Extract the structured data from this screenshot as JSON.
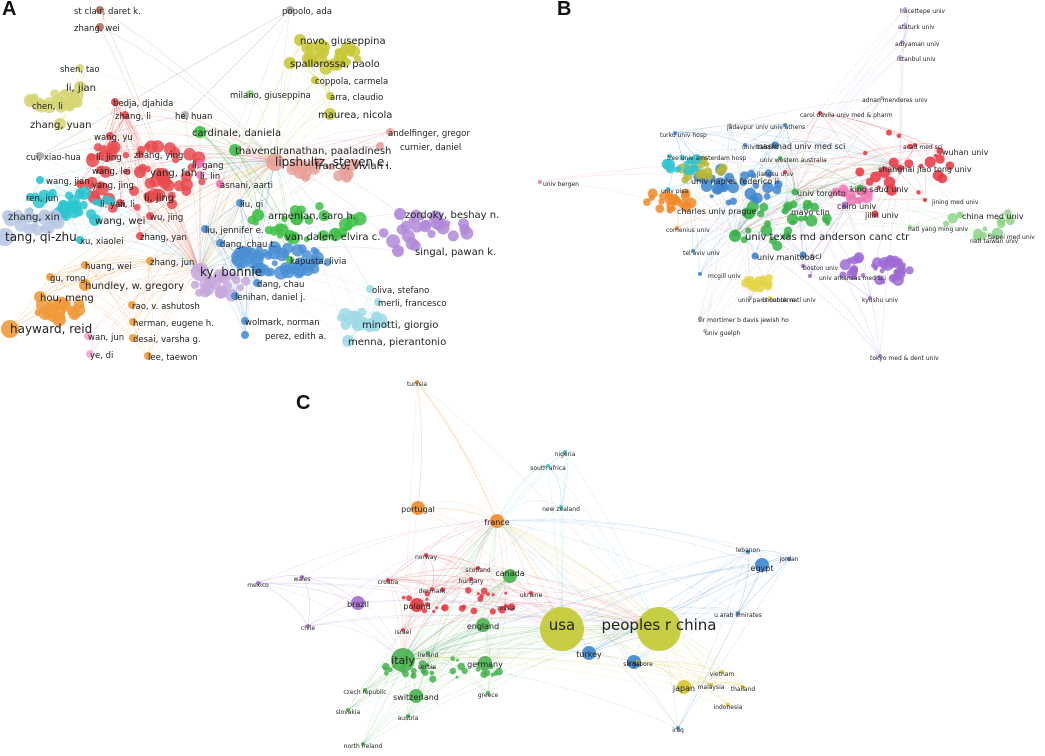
{
  "panels": {
    "a": {
      "label": "A",
      "colors": {
        "brown": "#b46f5f",
        "olive": "#c9c93a",
        "khaki": "#d6d676",
        "red": "#e94a4e",
        "pink": "#f06fb0",
        "grey": "#aaaaaa",
        "lgreen": "#8dd07a",
        "salmon": "#e8a29a",
        "green": "#3fbf46",
        "purple": "#b088d8",
        "blue": "#4a8fd4",
        "cyan": "#2bc5cf",
        "lblue": "#b8c9e4",
        "lcyan": "#9fdbe6",
        "orange": "#f09a3a",
        "lilac": "#c7a8dd",
        "lpink": "#f4a6cf"
      },
      "nodes": [
        {
          "label": "st clair, daret k.",
          "cluster": "brown",
          "weight": 1
        },
        {
          "label": "zhang, wei",
          "cluster": "brown",
          "weight": 1
        },
        {
          "label": "popolo, ada",
          "cluster": "grey",
          "weight": 1
        },
        {
          "label": "novo, giuseppina",
          "cluster": "olive",
          "weight": 2
        },
        {
          "label": "spallarossa, paolo",
          "cluster": "olive",
          "weight": 2
        },
        {
          "label": "coppola, carmela",
          "cluster": "olive",
          "weight": 1
        },
        {
          "label": "milano, giuseppina",
          "cluster": "lgreen",
          "weight": 1
        },
        {
          "label": "arra, claudio",
          "cluster": "olive",
          "weight": 1
        },
        {
          "label": "maurea, nicola",
          "cluster": "olive",
          "weight": 2
        },
        {
          "label": "shen, tao",
          "cluster": "khaki",
          "weight": 1
        },
        {
          "label": "li, jian",
          "cluster": "khaki",
          "weight": 2
        },
        {
          "label": "chen, li",
          "cluster": "khaki",
          "weight": 1
        },
        {
          "label": "zhang, yuan",
          "cluster": "khaki",
          "weight": 2
        },
        {
          "label": "bedja, djahida",
          "cluster": "red",
          "weight": 1
        },
        {
          "label": "he, huan",
          "cluster": "grey",
          "weight": 1
        },
        {
          "label": "zhang, li",
          "cluster": "red",
          "weight": 1
        },
        {
          "label": "wang, yu",
          "cluster": "red",
          "weight": 1
        },
        {
          "label": "cardinale, daniela",
          "cluster": "green",
          "weight": 2
        },
        {
          "label": "andelfinger, gregor",
          "cluster": "salmon",
          "weight": 1
        },
        {
          "label": "curnier, daniel",
          "cluster": "salmon",
          "weight": 1
        },
        {
          "label": "thavendiranathan, paaladinesh",
          "cluster": "green",
          "weight": 2
        },
        {
          "label": "cui, xiao-hua",
          "cluster": "grey",
          "weight": 1
        },
        {
          "label": "li, jing",
          "cluster": "red",
          "weight": 1
        },
        {
          "label": "zhang, ying",
          "cluster": "red",
          "weight": 1
        },
        {
          "label": "wang, lei",
          "cluster": "red",
          "weight": 1
        },
        {
          "label": "yang, fan",
          "cluster": "red",
          "weight": 2
        },
        {
          "label": "li, gang",
          "cluster": "pink",
          "weight": 1
        },
        {
          "label": "franco, vivian i.",
          "cluster": "salmon",
          "weight": 2
        },
        {
          "label": "wang, jian",
          "cluster": "cyan",
          "weight": 1
        },
        {
          "label": "yang, jing",
          "cluster": "red",
          "weight": 1
        },
        {
          "label": "asnani, aarti",
          "cluster": "pink",
          "weight": 1
        },
        {
          "label": "lipshultz, steven e.",
          "cluster": "salmon",
          "weight": 3
        },
        {
          "label": "ren, jun",
          "cluster": "cyan",
          "weight": 1
        },
        {
          "label": "li, jing",
          "cluster": "red",
          "weight": 2
        },
        {
          "label": "li, lin",
          "cluster": "pink",
          "weight": 1
        },
        {
          "label": "zhang, xin",
          "cluster": "lblue",
          "weight": 2
        },
        {
          "label": "li, yan",
          "cluster": "cyan",
          "weight": 1
        },
        {
          "label": "li, li",
          "cluster": "red",
          "weight": 1
        },
        {
          "label": "wu, jing",
          "cluster": "red",
          "weight": 1
        },
        {
          "label": "liu, qi",
          "cluster": "blue",
          "weight": 1
        },
        {
          "label": "zordoky, beshay n.",
          "cluster": "purple",
          "weight": 2
        },
        {
          "label": "tang, qi-zhu",
          "cluster": "lblue",
          "weight": 3
        },
        {
          "label": "wang, wei",
          "cluster": "cyan",
          "weight": 2
        },
        {
          "label": "armenian, saro h.",
          "cluster": "green",
          "weight": 2
        },
        {
          "label": "xu, xiaolei",
          "cluster": "cyan",
          "weight": 1
        },
        {
          "label": "zhang, yan",
          "cluster": "red",
          "weight": 1
        },
        {
          "label": "liu, jennifer e.",
          "cluster": "blue",
          "weight": 1
        },
        {
          "label": "van dalen, elvira c.",
          "cluster": "green",
          "weight": 2
        },
        {
          "label": "dang, chau t.",
          "cluster": "blue",
          "weight": 1
        },
        {
          "label": "singal, pawan k.",
          "cluster": "purple",
          "weight": 2
        },
        {
          "label": "zhang, jun",
          "cluster": "orange",
          "weight": 1
        },
        {
          "label": "kapusta, livia",
          "cluster": "green",
          "weight": 1
        },
        {
          "label": "huang, wei",
          "cluster": "orange",
          "weight": 1
        },
        {
          "label": "ky, bonnie",
          "cluster": "lilac",
          "weight": 3
        },
        {
          "label": "gu, rong",
          "cluster": "orange",
          "weight": 1
        },
        {
          "label": "hundley, w. gregory",
          "cluster": "orange",
          "weight": 2
        },
        {
          "label": "hou, meng",
          "cluster": "orange",
          "weight": 2
        },
        {
          "label": "dang, chau",
          "cluster": "blue",
          "weight": 1
        },
        {
          "label": "lenihan, daniel j.",
          "cluster": "blue",
          "weight": 1
        },
        {
          "label": "oliva, stefano",
          "cluster": "lcyan",
          "weight": 1
        },
        {
          "label": "rao, v. ashutosh",
          "cluster": "orange",
          "weight": 1
        },
        {
          "label": "merli, francesco",
          "cluster": "lcyan",
          "weight": 1
        },
        {
          "label": "hayward, reid",
          "cluster": "orange",
          "weight": 3
        },
        {
          "label": "wolmark, norman",
          "cluster": "blue",
          "weight": 1
        },
        {
          "label": "herman, eugene h.",
          "cluster": "orange",
          "weight": 1
        },
        {
          "label": "minotti, giorgio",
          "cluster": "lcyan",
          "weight": 2
        },
        {
          "label": "perez, edith a.",
          "cluster": "blue",
          "weight": 1
        },
        {
          "label": "desai, varsha g.",
          "cluster": "orange",
          "weight": 1
        },
        {
          "label": "wan, jun",
          "cluster": "lpink",
          "weight": 1
        },
        {
          "label": "menna, pierantonio",
          "cluster": "lcyan",
          "weight": 2
        },
        {
          "label": "ye, di",
          "cluster": "lpink",
          "weight": 1
        },
        {
          "label": "lee, taewon",
          "cluster": "orange",
          "weight": 1
        }
      ]
    },
    "b": {
      "label": "B",
      "colors": {
        "red": "#e8353f",
        "green": "#3ab34a",
        "blue": "#3d86d1",
        "purple": "#9e6bd4",
        "orange": "#f08a29",
        "lgreen": "#8fd58a",
        "cyan": "#33c3d0",
        "pink": "#f07ab7",
        "olive": "#b9b936",
        "grey": "#b5b5b5",
        "lilac": "#c7a3e6",
        "yellow": "#e4d447"
      },
      "nodes": [
        {
          "label": "hacettepe univ",
          "cluster": "lilac",
          "weight": 1
        },
        {
          "label": "ataturk univ",
          "cluster": "lilac",
          "weight": 1
        },
        {
          "label": "adiyaman univ",
          "cluster": "lilac",
          "weight": 1
        },
        {
          "label": "istanbul univ",
          "cluster": "lilac",
          "weight": 1
        },
        {
          "label": "adnan menderes univ",
          "cluster": "grey",
          "weight": 1
        },
        {
          "label": "turku univ hosp",
          "cluster": "blue",
          "weight": 1
        },
        {
          "label": "jadavpur univ",
          "cluster": "grey",
          "weight": 1
        },
        {
          "label": "univ athens",
          "cluster": "blue",
          "weight": 1
        },
        {
          "label": "carol davila univ med & pharm",
          "cluster": "red",
          "weight": 1
        },
        {
          "label": "univ salerno",
          "cluster": "blue",
          "weight": 1
        },
        {
          "label": "mashhad univ med sci",
          "cluster": "blue",
          "weight": 2
        },
        {
          "label": "acad med sci",
          "cluster": "red",
          "weight": 1
        },
        {
          "label": "wuhan univ",
          "cluster": "red",
          "weight": 2
        },
        {
          "label": "free univ amsterdam hosp",
          "cluster": "cyan",
          "weight": 1
        },
        {
          "label": "univ western australia",
          "cluster": "green",
          "weight": 1
        },
        {
          "label": "shanghai jiao tong univ",
          "cluster": "red",
          "weight": 2
        },
        {
          "label": "jiangsu univ",
          "cluster": "red",
          "weight": 1
        },
        {
          "label": "univ bergen",
          "cluster": "pink",
          "weight": 1
        },
        {
          "label": "univ naples federico ii",
          "cluster": "olive",
          "weight": 2
        },
        {
          "label": "king saud univ",
          "cluster": "green",
          "weight": 2
        },
        {
          "label": "cairo univ",
          "cluster": "purple",
          "weight": 2
        },
        {
          "label": "univ toronto",
          "cluster": "green",
          "weight": 2
        },
        {
          "label": "univ pisa",
          "cluster": "cyan",
          "weight": 1
        },
        {
          "label": "jilin univ",
          "cluster": "red",
          "weight": 2
        },
        {
          "label": "charles univ prague",
          "cluster": "orange",
          "weight": 2
        },
        {
          "label": "mayo clin",
          "cluster": "green",
          "weight": 2
        },
        {
          "label": "china med univ",
          "cluster": "lgreen",
          "weight": 2
        },
        {
          "label": "jining med univ",
          "cluster": "red",
          "weight": 1
        },
        {
          "label": "comenius univ",
          "cluster": "orange",
          "weight": 1
        },
        {
          "label": "natl yang ming univ",
          "cluster": "lgreen",
          "weight": 1
        },
        {
          "label": "taipei med univ",
          "cluster": "lgreen",
          "weight": 1
        },
        {
          "label": "natl taiwan univ",
          "cluster": "lgreen",
          "weight": 1
        },
        {
          "label": "univ texas md anderson canc ctr",
          "cluster": "green",
          "weight": 3
        },
        {
          "label": "univ manitoba",
          "cluster": "blue",
          "weight": 2
        },
        {
          "label": "nci",
          "cluster": "blue",
          "weight": 2
        },
        {
          "label": "tel aviv univ",
          "cluster": "blue",
          "weight": 1
        },
        {
          "label": "mcgill univ",
          "cluster": "blue",
          "weight": 1
        },
        {
          "label": "boston univ",
          "cluster": "purple",
          "weight": 1
        },
        {
          "label": "univ arkansas med sci",
          "cluster": "purple",
          "weight": 1
        },
        {
          "label": "chonbuk natl univ",
          "cluster": "yellow",
          "weight": 1
        },
        {
          "label": "kyushu univ",
          "cluster": "purple",
          "weight": 1
        },
        {
          "label": "univ paris nanterre",
          "cluster": "grey",
          "weight": 1
        },
        {
          "label": "sir mortimer b davis jewish ho",
          "cluster": "grey",
          "weight": 1
        },
        {
          "label": "univ guelph",
          "cluster": "grey",
          "weight": 1
        },
        {
          "label": "tokyo med & dent univ",
          "cluster": "purple",
          "weight": 1
        }
      ]
    },
    "c": {
      "label": "C",
      "colors": {
        "orange": "#f08a29",
        "cyan": "#33c3d0",
        "olive": "#c2c930",
        "green": "#49b24f",
        "red": "#e8353f",
        "purple": "#a46bd0",
        "blue": "#3d86d1",
        "yellow": "#d6c32e",
        "lilac": "#b88de0"
      },
      "nodes": [
        {
          "label": "tunisia",
          "cluster": "orange",
          "weight": 1
        },
        {
          "label": "nigeria",
          "cluster": "cyan",
          "weight": 1
        },
        {
          "label": "south africa",
          "cluster": "cyan",
          "weight": 1
        },
        {
          "label": "portugal",
          "cluster": "orange",
          "weight": 2
        },
        {
          "label": "france",
          "cluster": "orange",
          "weight": 2
        },
        {
          "label": "new zealand",
          "cluster": "cyan",
          "weight": 1
        },
        {
          "label": "lebanon",
          "cluster": "blue",
          "weight": 1
        },
        {
          "label": "norway",
          "cluster": "red",
          "weight": 1
        },
        {
          "label": "scotland",
          "cluster": "red",
          "weight": 1
        },
        {
          "label": "jordan",
          "cluster": "blue",
          "weight": 1
        },
        {
          "label": "canada",
          "cluster": "green",
          "weight": 2
        },
        {
          "label": "egypt",
          "cluster": "blue",
          "weight": 2
        },
        {
          "label": "wales",
          "cluster": "purple",
          "weight": 1
        },
        {
          "label": "hungary",
          "cluster": "red",
          "weight": 1
        },
        {
          "label": "mexico",
          "cluster": "purple",
          "weight": 1
        },
        {
          "label": "croatia",
          "cluster": "red",
          "weight": 1
        },
        {
          "label": "denmark",
          "cluster": "red",
          "weight": 1
        },
        {
          "label": "ukraine",
          "cluster": "red",
          "weight": 1
        },
        {
          "label": "brazil",
          "cluster": "purple",
          "weight": 2
        },
        {
          "label": "russia",
          "cluster": "red",
          "weight": 1
        },
        {
          "label": "poland",
          "cluster": "red",
          "weight": 2
        },
        {
          "label": "u arab emirates",
          "cluster": "blue",
          "weight": 1
        },
        {
          "label": "usa",
          "cluster": "olive",
          "weight": 4
        },
        {
          "label": "peoples r china",
          "cluster": "olive",
          "weight": 4
        },
        {
          "label": "england",
          "cluster": "green",
          "weight": 2
        },
        {
          "label": "chile",
          "cluster": "purple",
          "weight": 1
        },
        {
          "label": "israel",
          "cluster": "red",
          "weight": 1
        },
        {
          "label": "turkey",
          "cluster": "blue",
          "weight": 2
        },
        {
          "label": "iran",
          "cluster": "blue",
          "weight": 2
        },
        {
          "label": "italy",
          "cluster": "green",
          "weight": 3
        },
        {
          "label": "ireland",
          "cluster": "green",
          "weight": 1
        },
        {
          "label": "serbia",
          "cluster": "green",
          "weight": 1
        },
        {
          "label": "germany",
          "cluster": "green",
          "weight": 2
        },
        {
          "label": "singapore",
          "cluster": "yellow",
          "weight": 1
        },
        {
          "label": "vietnam",
          "cluster": "yellow",
          "weight": 1
        },
        {
          "label": "japan",
          "cluster": "yellow",
          "weight": 2
        },
        {
          "label": "thailand",
          "cluster": "yellow",
          "weight": 1
        },
        {
          "label": "malaysia",
          "cluster": "yellow",
          "weight": 1
        },
        {
          "label": "czech republic",
          "cluster": "green",
          "weight": 1
        },
        {
          "label": "switzerland",
          "cluster": "green",
          "weight": 2
        },
        {
          "label": "greece",
          "cluster": "green",
          "weight": 1
        },
        {
          "label": "indonesia",
          "cluster": "yellow",
          "weight": 1
        },
        {
          "label": "slovakia",
          "cluster": "green",
          "weight": 1
        },
        {
          "label": "austria",
          "cluster": "green",
          "weight": 1
        },
        {
          "label": "iraq",
          "cluster": "blue",
          "weight": 1
        },
        {
          "label": "north ireland",
          "cluster": "green",
          "weight": 1
        }
      ]
    }
  }
}
